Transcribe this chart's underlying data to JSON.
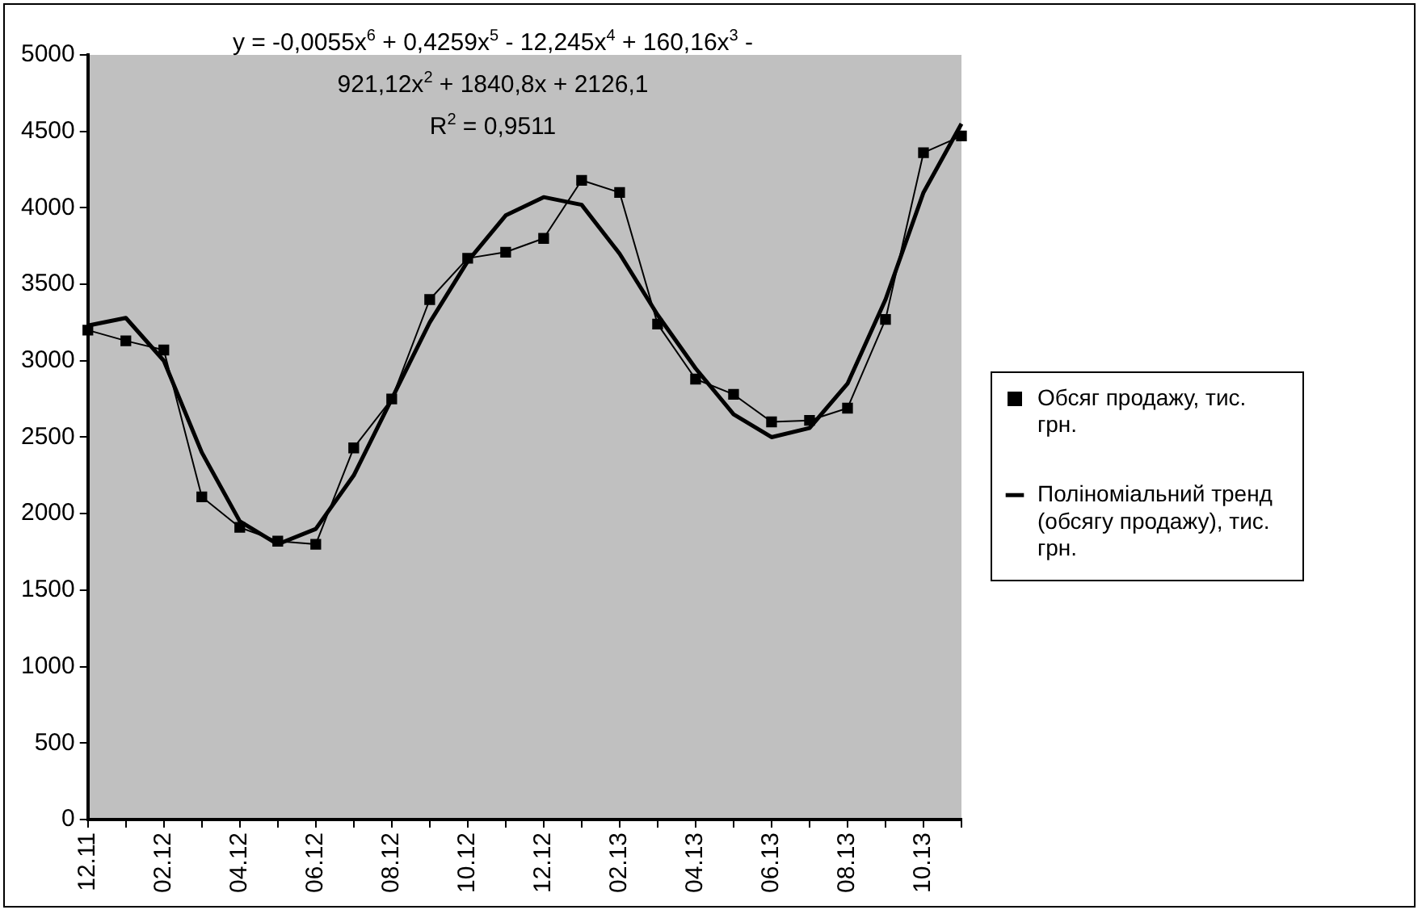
{
  "chart_data": {
    "type": "line",
    "categories": [
      "12.11",
      null,
      "02.12",
      null,
      "04.12",
      null,
      "06.12",
      null,
      "08.12",
      null,
      "10.12",
      null,
      "12.12",
      null,
      "02.13",
      null,
      "04.13",
      null,
      "06.13",
      null,
      "08.13",
      null,
      "10.13",
      null
    ],
    "series": [
      {
        "name": "Обсяг продажу, тис. грн.",
        "color": "#000000",
        "marker": "square",
        "values": [
          3200,
          3130,
          3070,
          2110,
          1910,
          1820,
          1800,
          2430,
          2750,
          3400,
          3670,
          3710,
          3800,
          4180,
          4100,
          3240,
          2880,
          2780,
          2600,
          2610,
          2690,
          3270,
          4360,
          4470
        ]
      },
      {
        "name": "Поліноміальний тренд (обсягу продажу), тис. грн.",
        "color": "#000000",
        "marker": "none",
        "values": [
          3230,
          3280,
          3000,
          2400,
          1950,
          1800,
          1900,
          2250,
          2750,
          3250,
          3650,
          3950,
          4070,
          4020,
          3700,
          3300,
          2950,
          2650,
          2500,
          2560,
          2850,
          3400,
          4100,
          4550
        ]
      }
    ],
    "ylim": [
      0,
      5000
    ],
    "yticks": [
      0,
      500,
      1000,
      1500,
      2000,
      2500,
      3000,
      3500,
      4000,
      4500,
      5000
    ],
    "grid": false,
    "legend": "right",
    "annotations": [
      "y = -0,0055x$^{6}$ + 0,4259x$^{5}$ - 12,245x$^{4}$ + 160,16x$^{3}$ - 921,12x$^{2}$ + 1840,8x + 2126,1",
      "R$^{2}$ = 0,9511"
    ]
  }
}
